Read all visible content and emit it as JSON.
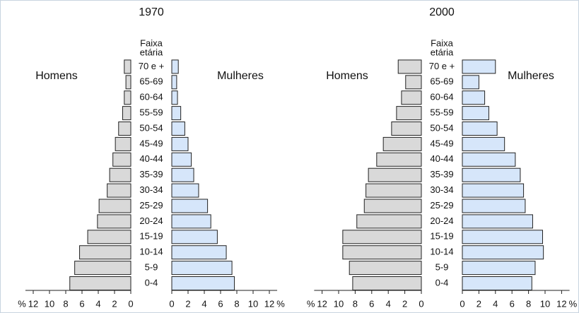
{
  "chart_data": [
    {
      "type": "pyramid",
      "title": "1970",
      "age_axis_label": [
        "Faixa",
        "etária"
      ],
      "unit": "%",
      "categories": [
        "0-4",
        "5-9",
        "10-14",
        "15-19",
        "20-24",
        "25-29",
        "30-34",
        "35-39",
        "40-44",
        "45-49",
        "50-54",
        "55-59",
        "60-64",
        "65-69",
        "70 e +"
      ],
      "series": [
        {
          "name": "Homens",
          "color": "#d9d9d9",
          "side": "left",
          "values": [
            7.5,
            6.9,
            6.3,
            5.3,
            4.1,
            3.9,
            2.9,
            2.6,
            2.2,
            1.9,
            1.5,
            1.0,
            0.8,
            0.6,
            0.8
          ]
        },
        {
          "name": "Mulheres",
          "color": "#d6e6fa",
          "side": "right",
          "values": [
            7.7,
            7.4,
            6.7,
            5.6,
            4.8,
            4.4,
            3.3,
            2.7,
            2.4,
            2.0,
            1.6,
            1.1,
            0.7,
            0.6,
            0.8
          ]
        }
      ],
      "xlim": [
        0,
        12
      ],
      "xticks": [
        0,
        2,
        4,
        6,
        8,
        10,
        12
      ]
    },
    {
      "type": "pyramid",
      "title": "2000",
      "age_axis_label": [
        "Faixa",
        "etária"
      ],
      "unit": "%",
      "categories": [
        "0-4",
        "5-9",
        "10-14",
        "15-19",
        "20-24",
        "25-29",
        "30-34",
        "35-39",
        "40-44",
        "45-49",
        "50-54",
        "55-59",
        "60-64",
        "65-69",
        "70 e +"
      ],
      "series": [
        {
          "name": "Homens",
          "color": "#d9d9d9",
          "side": "left",
          "values": [
            8.3,
            8.7,
            9.5,
            9.5,
            7.8,
            6.9,
            6.7,
            6.4,
            5.4,
            4.6,
            3.6,
            3.0,
            2.4,
            1.9,
            2.8
          ]
        },
        {
          "name": "Mulheres",
          "color": "#d6e6fa",
          "side": "right",
          "values": [
            8.4,
            8.8,
            9.8,
            9.7,
            8.5,
            7.6,
            7.4,
            7.0,
            6.4,
            5.1,
            4.2,
            3.2,
            2.7,
            2.0,
            4.0
          ]
        }
      ],
      "xlim": [
        0,
        12
      ],
      "xticks": [
        0,
        2,
        4,
        6,
        8,
        10,
        12
      ]
    }
  ]
}
